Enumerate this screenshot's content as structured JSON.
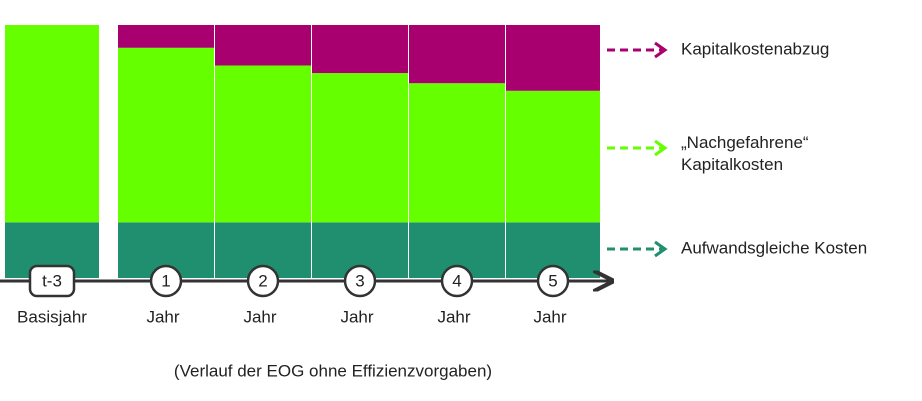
{
  "chart_data": {
    "type": "bar",
    "stacked": true,
    "categories": [
      "t-3",
      "1",
      "2",
      "3",
      "4",
      "5"
    ],
    "category_sublabels": [
      "Basisjahr",
      "Jahr",
      "Jahr",
      "Jahr",
      "Jahr",
      "Jahr"
    ],
    "series": [
      {
        "name": "Aufwandsgleiche  Kosten",
        "color": "#1f8f6f",
        "values": [
          22,
          22,
          22,
          22,
          22,
          22
        ]
      },
      {
        "name": "„Nachgefahrene“ Kapitalkosten",
        "color": "#66ff00",
        "values": [
          78,
          69,
          62,
          59,
          55,
          52
        ]
      },
      {
        "name": "Kapitalkostenabzug",
        "color": "#a8006f",
        "values": [
          0,
          9,
          16,
          19,
          23,
          26
        ]
      }
    ],
    "ylim": [
      0,
      100
    ],
    "footnote": "(Verlauf der EOG ohne Effizienzvorgaben)"
  }
}
